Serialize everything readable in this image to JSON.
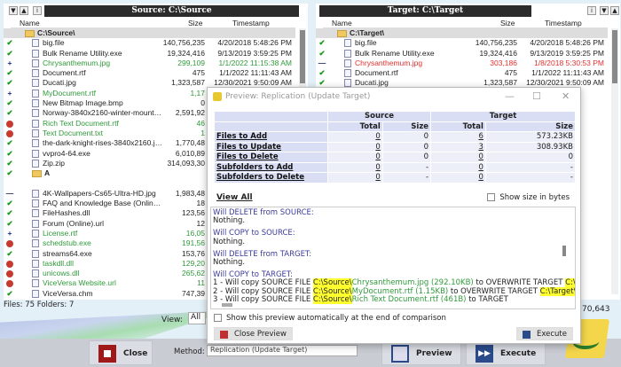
{
  "left": {
    "title": "Source: C:\\Source",
    "columns": {
      "name": "Name",
      "size": "Size",
      "timestamp": "Timestamp"
    },
    "rows": [
      {
        "type": "folder",
        "name": "C:\\Source\\"
      },
      {
        "status": "check",
        "name": "big.file",
        "size": "140,756,235",
        "ts": "4/20/2018 5:48:26 PM"
      },
      {
        "status": "check",
        "name": "Bulk Rename Utility.exe",
        "size": "19,324,416",
        "ts": "9/13/2019 3:59:25 PM"
      },
      {
        "status": "plus",
        "name": "Chrysanthemum.jpg",
        "size": "299,109",
        "ts": "1/1/2022 11:15:38 AM",
        "color": "g"
      },
      {
        "status": "check",
        "name": "Document.rtf",
        "size": "475",
        "ts": "1/1/2022 11:11:43 AM"
      },
      {
        "status": "check",
        "name": "Ducati.jpg",
        "size": "1,323,587",
        "ts": "12/30/2021 9:50:09 AM"
      },
      {
        "status": "plus",
        "name": "MyDocument.rtf",
        "size": "1,17",
        "color": "g"
      },
      {
        "status": "check",
        "name": "New Bitmap Image.bmp",
        "size": "0"
      },
      {
        "status": "check",
        "name": "Norway-3840x2160-winter-mountains-l...",
        "size": "2,591,92"
      },
      {
        "status": "red",
        "name": "Rich Text Document.rtf",
        "size": "46",
        "color": "g"
      },
      {
        "status": "red",
        "name": "Text Document.txt",
        "size": "1",
        "color": "g"
      },
      {
        "status": "check",
        "name": "the-dark-knight-rises-3840x2160.jpg",
        "size": "1,770,48"
      },
      {
        "status": "check",
        "name": "vvpro4-64.exe",
        "size": "6,010,89"
      },
      {
        "status": "check",
        "name": "Zip.zip",
        "size": "314,093,30"
      },
      {
        "type": "subfolder",
        "status": "check",
        "name": "A"
      },
      {
        "status": "",
        "name": ""
      },
      {
        "status": "minus",
        "name": "4K-Wallpapers-Cs65-Ultra-HD.jpg",
        "size": "1,983,48"
      },
      {
        "status": "check",
        "name": "FAQ and Knowledge Base (Online).url",
        "size": "18"
      },
      {
        "status": "check",
        "name": "FileHashes.dll",
        "size": "123,56"
      },
      {
        "status": "check",
        "name": "Forum (Online).url",
        "size": "12"
      },
      {
        "status": "plus",
        "name": "License.rtf",
        "size": "16,05",
        "color": "g"
      },
      {
        "status": "red",
        "name": "schedstub.exe",
        "size": "191,56",
        "color": "g"
      },
      {
        "status": "check",
        "name": "streams64.exe",
        "size": "153,76"
      },
      {
        "status": "red",
        "name": "taskdll.dll",
        "size": "129,20",
        "color": "g"
      },
      {
        "status": "red",
        "name": "unicows.dll",
        "size": "265,62",
        "color": "g"
      },
      {
        "status": "red",
        "name": "ViceVersa Website.url",
        "size": "11",
        "color": "g"
      },
      {
        "status": "check",
        "name": "ViceVersa.chm",
        "size": "747,39"
      }
    ],
    "status": "Files: 75  Folders: 7"
  },
  "right": {
    "title": "Target: C:\\Target",
    "columns": {
      "name": "Name",
      "size": "Size",
      "timestamp": "Timestamp"
    },
    "rows": [
      {
        "type": "folder",
        "name": "C:\\Target\\"
      },
      {
        "status": "check",
        "name": "big.file",
        "size": "140,756,235",
        "ts": "4/20/2018 5:48:26 PM"
      },
      {
        "status": "check",
        "name": "Bulk Rename Utility.exe",
        "size": "19,324,416",
        "ts": "9/13/2019 3:59:25 PM"
      },
      {
        "status": "minus",
        "name": "Chrysanthemum.jpg",
        "size": "303,186",
        "ts": "1/8/2018 5:30:53 PM",
        "color": "r"
      },
      {
        "status": "check",
        "name": "Document.rtf",
        "size": "475",
        "ts": "1/1/2022 11:11:43 AM"
      },
      {
        "status": "check",
        "name": "Ducati.jpg",
        "size": "1,323,587",
        "ts": "12/30/2021 9:50:09 AM"
      }
    ],
    "partial_size": "70,643"
  },
  "bottom": {
    "view_label": "View:",
    "view_value": "All",
    "close": "Close",
    "method_label": "Method:",
    "method_value": "Replication (Update Target)",
    "preview": "Preview",
    "execute": "Execute"
  },
  "dialog": {
    "title": "Preview: Replication (Update Target)",
    "table": {
      "source": "Source",
      "target": "Target",
      "total": "Total",
      "size": "Size",
      "rows": [
        {
          "label": "Files to Add",
          "s_total": "0",
          "s_size": "0",
          "t_total": "6",
          "t_size": "573.23KB"
        },
        {
          "label": "Files to Update",
          "s_total": "0",
          "s_size": "0",
          "t_total": "3",
          "t_size": "308.93KB"
        },
        {
          "label": "Files to Delete",
          "s_total": "0",
          "s_size": "0",
          "t_total": "0",
          "t_size": "0"
        },
        {
          "label": "Subfolders to Add",
          "s_total": "0",
          "s_size": "-",
          "t_total": "0",
          "t_size": "-"
        },
        {
          "label": "Subfolders to Delete",
          "s_total": "0",
          "s_size": "-",
          "t_total": "0",
          "t_size": "-"
        }
      ]
    },
    "view_all": "View All",
    "show_size_bytes": "Show size in bytes",
    "log": {
      "h1": "Will DELETE from SOURCE:",
      "n1": "Nothing.",
      "h2": "Will COPY to SOURCE:",
      "n2": "Nothing.",
      "h3": "Will DELETE from TARGET:",
      "n3": "Nothing.",
      "h4": "Will COPY to TARGET:",
      "lines": [
        {
          "pre": "1 - Will copy SOURCE FILE ",
          "src": "C:\\Source\\",
          "file": "Chrysanthemum.jpg (292.10KB)",
          "mid": " to OVERWRITE TARGET ",
          "tgt": "C:\\Target\\",
          "tfile": "Chrysanthemum.jpg"
        },
        {
          "pre": "2 - Will copy SOURCE FILE ",
          "src": "C:\\Source\\",
          "file": "MyDocument.rtf (1.15KB)",
          "mid": " to OVERWRITE TARGET ",
          "tgt": "C:\\Target\\",
          "tfile": "MyDocument.rtf"
        },
        {
          "pre": "3 - Will copy SOURCE FILE ",
          "src": "C:\\Source\\",
          "file": "Rich Text Document.rtf (461B)",
          "mid": " to TARGET",
          "tgt": "",
          "tfile": ""
        }
      ]
    },
    "auto_show": "Show this preview automatically at the end of comparison",
    "close_preview": "Close Preview",
    "execute": "Execute"
  }
}
